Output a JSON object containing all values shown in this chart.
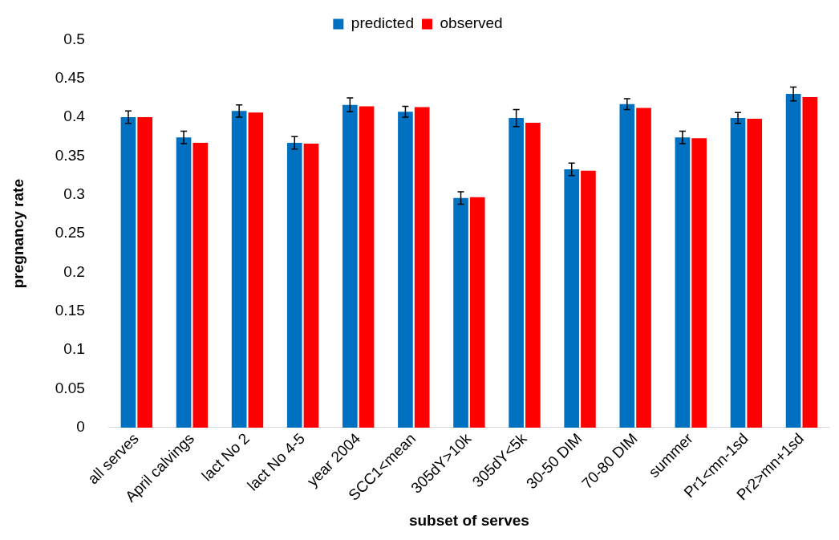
{
  "chart_data": {
    "type": "bar",
    "xlabel": "subset of serves",
    "ylabel": "pregnancy rate",
    "categories": [
      "all serves",
      "April calvings",
      "lact No 2",
      "lact No 4-5",
      "year 2004",
      "SCC1<mean",
      "305dY>10k",
      "305dY<5k",
      "30-50 DIM",
      "70-80 DIM",
      "summer",
      "Pr1<mn-1sd",
      "Pr2>mn+1sd"
    ],
    "series": [
      {
        "name": "predicted",
        "color": "#0070c0",
        "values": [
          0.4,
          0.374,
          0.408,
          0.367,
          0.416,
          0.407,
          0.296,
          0.399,
          0.333,
          0.417,
          0.374,
          0.399,
          0.43
        ],
        "errors": [
          0.008,
          0.008,
          0.008,
          0.008,
          0.009,
          0.007,
          0.008,
          0.011,
          0.008,
          0.007,
          0.008,
          0.007,
          0.009
        ]
      },
      {
        "name": "observed",
        "color": "#ff0000",
        "values": [
          0.4,
          0.367,
          0.406,
          0.366,
          0.414,
          0.413,
          0.297,
          0.393,
          0.331,
          0.412,
          0.373,
          0.398,
          0.426
        ]
      }
    ],
    "ylim": [
      0,
      0.5
    ],
    "yticks": [
      0,
      0.05,
      0.1,
      0.15,
      0.2,
      0.25,
      0.3,
      0.35,
      0.4,
      0.45,
      0.5
    ],
    "grid": false,
    "legend": "top"
  }
}
